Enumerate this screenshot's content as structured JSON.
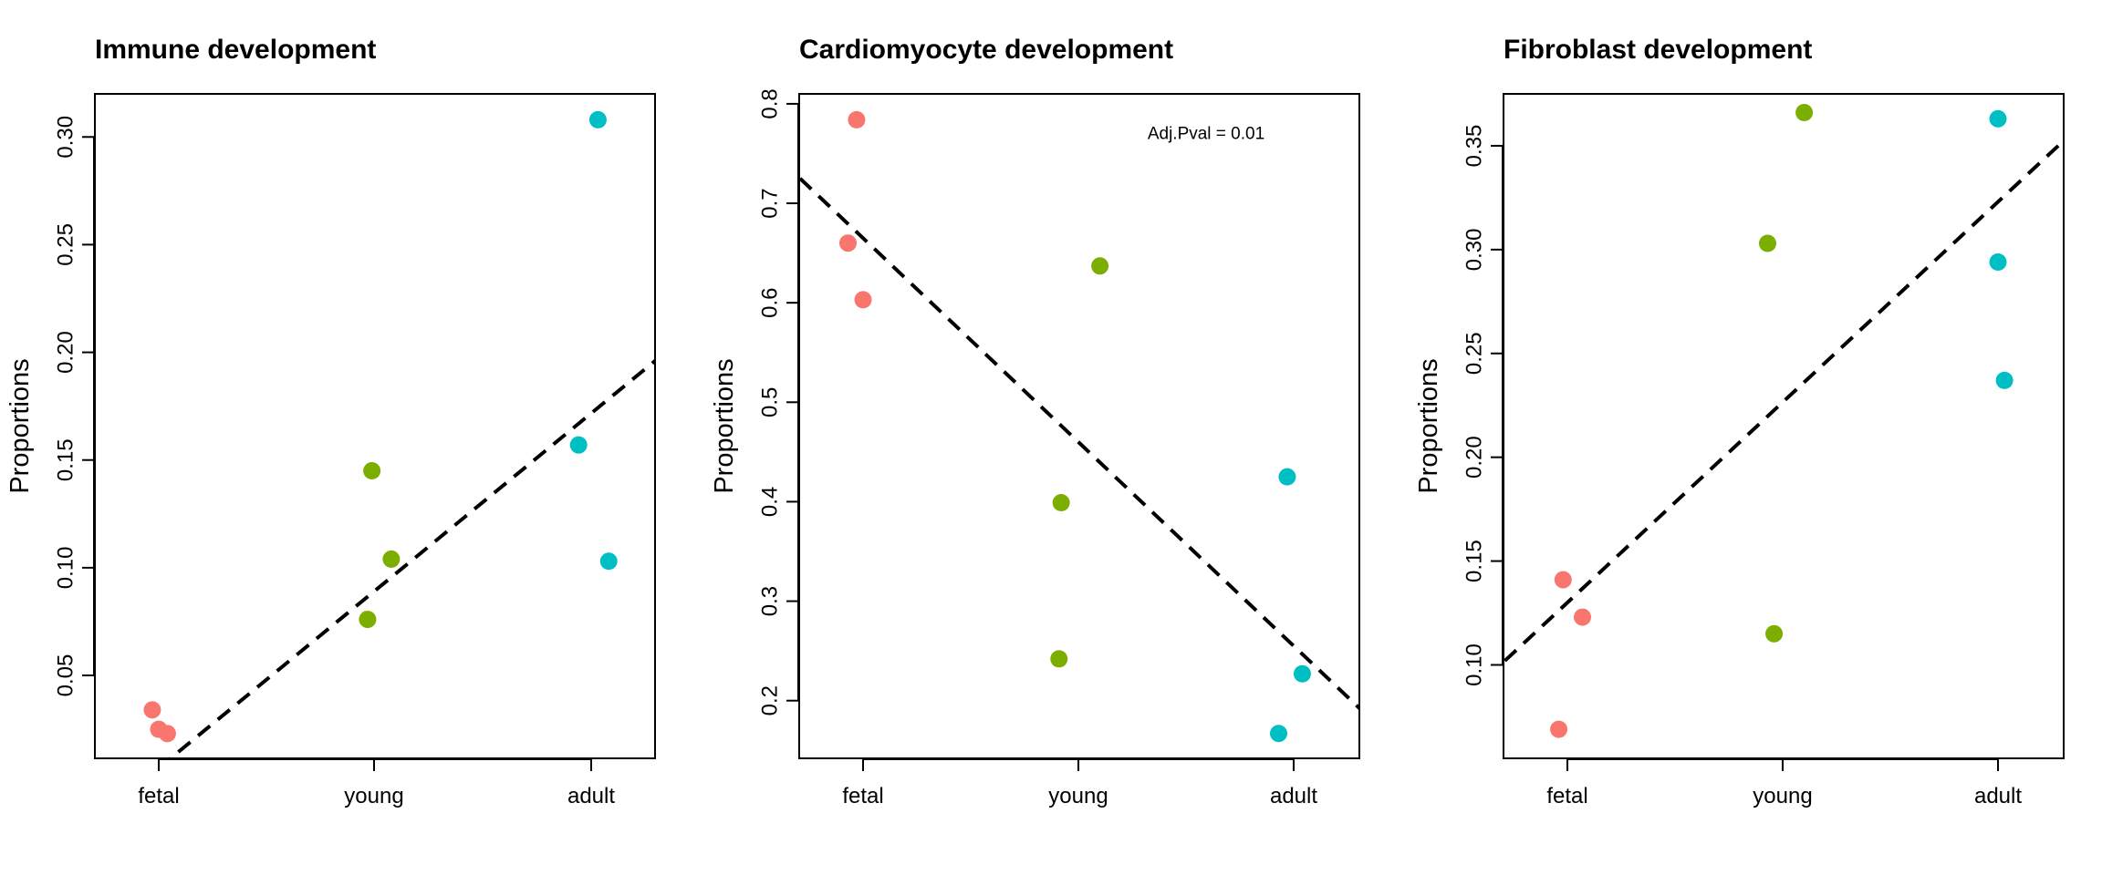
{
  "chart_data": [
    {
      "type": "scatter",
      "title": "Immune development",
      "xlabel": "",
      "ylabel": "Proportions",
      "categories": [
        "fetal",
        "young",
        "adult"
      ],
      "yticks": [
        "0.05",
        "0.10",
        "0.15",
        "0.20",
        "0.25",
        "0.30"
      ],
      "ylim": [
        0.0115,
        0.32
      ],
      "annotation": "",
      "trend": {
        "style": "dashed",
        "y_at_fetal": 0.007,
        "y_at_adult": 0.171
      },
      "series": [
        {
          "color": "#F8766D",
          "points": [
            {
              "x": 0.97,
              "y": 0.034
            },
            {
              "x": 1.0,
              "y": 0.025
            },
            {
              "x": 1.04,
              "y": 0.023
            }
          ]
        },
        {
          "color": "#7CAE00",
          "points": [
            {
              "x": 1.97,
              "y": 0.076
            },
            {
              "x": 1.99,
              "y": 0.145
            },
            {
              "x": 2.08,
              "y": 0.104
            }
          ]
        },
        {
          "color": "#00BFC4",
          "points": [
            {
              "x": 2.95,
              "y": 0.157
            },
            {
              "x": 3.04,
              "y": 0.308
            },
            {
              "x": 3.09,
              "y": 0.103
            }
          ]
        }
      ]
    },
    {
      "type": "scatter",
      "title": "Cardiomyocyte development",
      "xlabel": "",
      "ylabel": "Proportions",
      "categories": [
        "fetal",
        "young",
        "adult"
      ],
      "yticks": [
        "0.2",
        "0.3",
        "0.4",
        "0.5",
        "0.6",
        "0.7",
        "0.8"
      ],
      "ylim": [
        0.142,
        0.81
      ],
      "annotation": "Adj.Pval = 0.01",
      "trend": {
        "style": "dashed",
        "y_at_fetal": 0.665,
        "y_at_adult": 0.255
      },
      "series": [
        {
          "color": "#F8766D",
          "points": [
            {
              "x": 0.93,
              "y": 0.66
            },
            {
              "x": 0.97,
              "y": 0.784
            },
            {
              "x": 1.0,
              "y": 0.603
            }
          ]
        },
        {
          "color": "#7CAE00",
          "points": [
            {
              "x": 1.91,
              "y": 0.242
            },
            {
              "x": 1.92,
              "y": 0.399
            },
            {
              "x": 2.1,
              "y": 0.637
            }
          ]
        },
        {
          "color": "#00BFC4",
          "points": [
            {
              "x": 2.93,
              "y": 0.167
            },
            {
              "x": 2.97,
              "y": 0.425
            },
            {
              "x": 3.04,
              "y": 0.227
            }
          ]
        }
      ]
    },
    {
      "type": "scatter",
      "title": "Fibroblast development",
      "xlabel": "",
      "ylabel": "Proportions",
      "categories": [
        "fetal",
        "young",
        "adult"
      ],
      "yticks": [
        "0.10",
        "0.15",
        "0.20",
        "0.25",
        "0.30",
        "0.35"
      ],
      "ylim": [
        0.055,
        0.375
      ],
      "annotation": "",
      "trend": {
        "style": "dashed",
        "y_at_fetal": 0.13,
        "y_at_adult": 0.323
      },
      "series": [
        {
          "color": "#F8766D",
          "points": [
            {
              "x": 0.96,
              "y": 0.069
            },
            {
              "x": 0.98,
              "y": 0.141
            },
            {
              "x": 1.07,
              "y": 0.123
            }
          ]
        },
        {
          "color": "#7CAE00",
          "points": [
            {
              "x": 1.93,
              "y": 0.303
            },
            {
              "x": 1.96,
              "y": 0.115
            },
            {
              "x": 2.1,
              "y": 0.366
            }
          ]
        },
        {
          "color": "#00BFC4",
          "points": [
            {
              "x": 3.0,
              "y": 0.294
            },
            {
              "x": 3.0,
              "y": 0.363
            },
            {
              "x": 3.03,
              "y": 0.237
            }
          ]
        }
      ]
    }
  ]
}
